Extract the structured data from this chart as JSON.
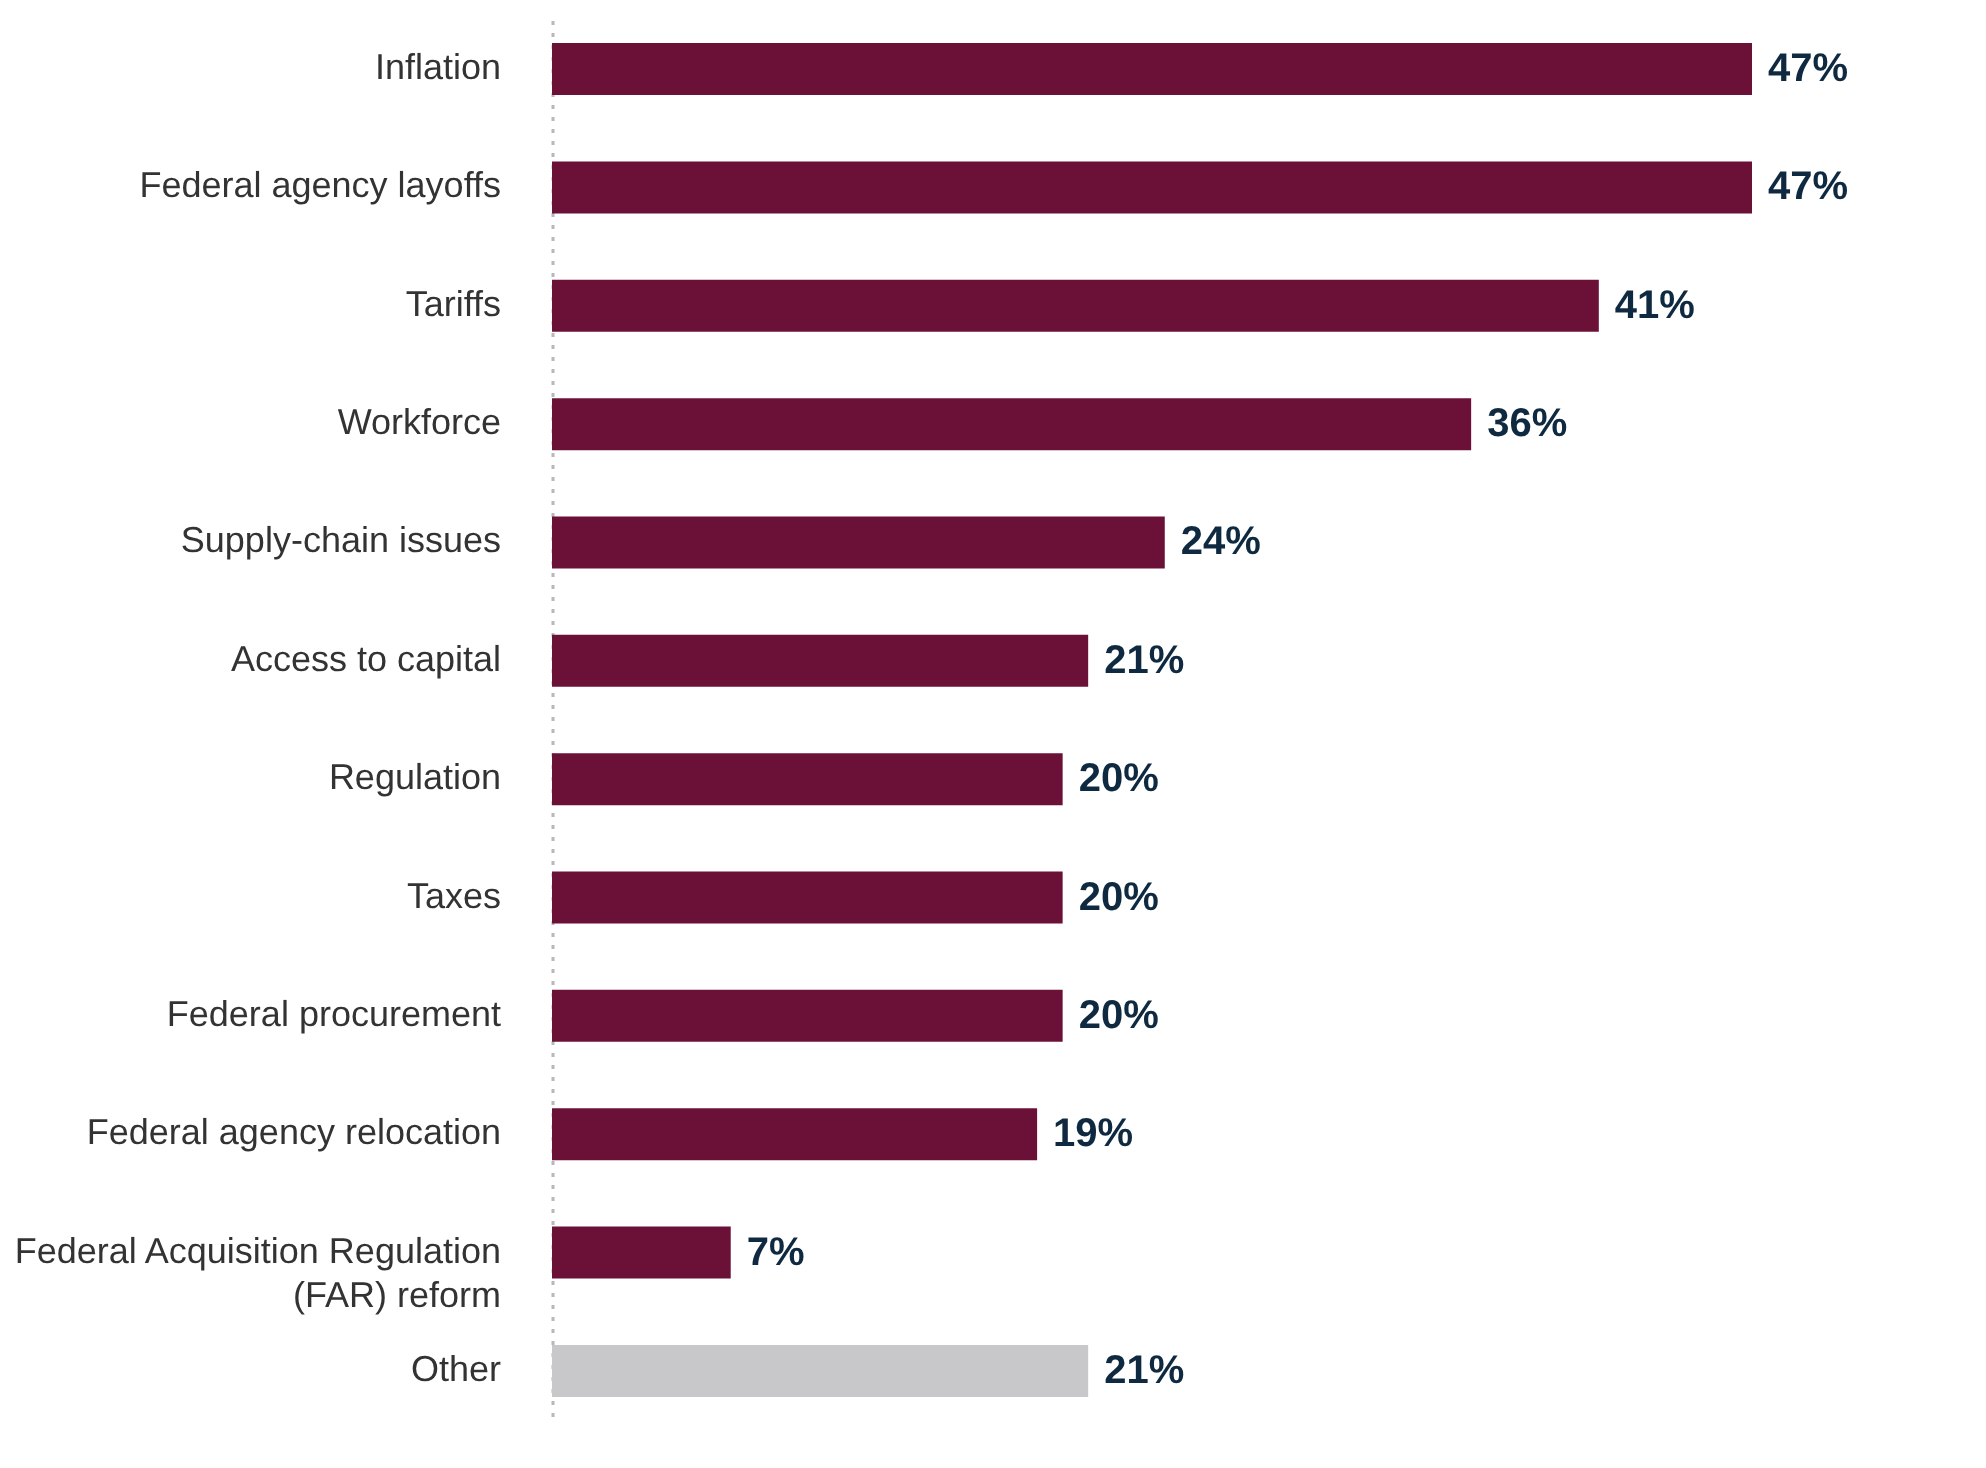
{
  "chart_data": {
    "type": "bar",
    "orientation": "horizontal",
    "categories": [
      "Inflation",
      "Federal agency layoffs",
      "Tariffs",
      "Workforce",
      "Supply-chain issues",
      "Access to capital",
      "Regulation",
      "Taxes",
      "Federal procurement",
      "Federal agency relocation",
      "Federal Acquisition Regulation (FAR) reform",
      "Other"
    ],
    "values": [
      47,
      47,
      41,
      36,
      24,
      21,
      20,
      20,
      20,
      19,
      7,
      21
    ],
    "value_labels": [
      "47%",
      "47%",
      "41%",
      "36%",
      "24%",
      "21%",
      "20%",
      "20%",
      "20%",
      "19%",
      "7%",
      "21%"
    ],
    "colors": [
      "#6b1036",
      "#6b1036",
      "#6b1036",
      "#6b1036",
      "#6b1036",
      "#6b1036",
      "#6b1036",
      "#6b1036",
      "#6b1036",
      "#6b1036",
      "#6b1036",
      "#c8c8ca"
    ],
    "xlim": [
      0,
      47
    ],
    "tick_labels": "y"
  }
}
